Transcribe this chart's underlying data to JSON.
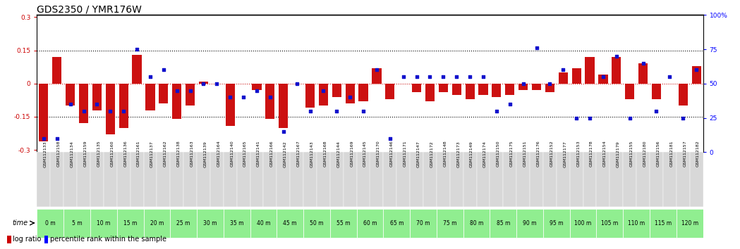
{
  "title": "GDS2350 / YMR176W",
  "samples": [
    "GSM112133",
    "GSM112158",
    "GSM112134",
    "GSM112159",
    "GSM112135",
    "GSM112160",
    "GSM112136",
    "GSM112161",
    "GSM112137",
    "GSM112162",
    "GSM112138",
    "GSM112163",
    "GSM112139",
    "GSM112164",
    "GSM112140",
    "GSM112165",
    "GSM112141",
    "GSM112166",
    "GSM112142",
    "GSM112167",
    "GSM112143",
    "GSM112168",
    "GSM112144",
    "GSM112169",
    "GSM112145",
    "GSM112170",
    "GSM112146",
    "GSM112171",
    "GSM112147",
    "GSM112172",
    "GSM112148",
    "GSM112173",
    "GSM112149",
    "GSM112174",
    "GSM112150",
    "GSM112175",
    "GSM112151",
    "GSM112176",
    "GSM112152",
    "GSM112177",
    "GSM112153",
    "GSM112178",
    "GSM112154",
    "GSM112179",
    "GSM112155",
    "GSM112180",
    "GSM112156",
    "GSM112181",
    "GSM112157",
    "GSM112182"
  ],
  "time_labels": [
    "0 m",
    "5 m",
    "10 m",
    "15 m",
    "20 m",
    "25 m",
    "30 m",
    "35 m",
    "40 m",
    "45 m",
    "50 m",
    "55 m",
    "60 m",
    "65 m",
    "70 m",
    "75 m",
    "80 m",
    "85 m",
    "90 m",
    "95 m",
    "100 m",
    "105 m",
    "110 m",
    "115 m",
    "120 m"
  ],
  "log_ratio": [
    -0.26,
    0.12,
    -0.1,
    -0.18,
    -0.12,
    -0.23,
    -0.2,
    0.13,
    -0.12,
    -0.09,
    -0.16,
    -0.1,
    0.01,
    0.0,
    -0.19,
    0.0,
    -0.03,
    -0.16,
    -0.2,
    0.0,
    -0.11,
    -0.1,
    -0.06,
    -0.09,
    -0.08,
    0.07,
    -0.07,
    0.0,
    -0.04,
    -0.08,
    -0.04,
    -0.05,
    -0.07,
    -0.05,
    -0.06,
    -0.05,
    -0.03,
    -0.03,
    -0.04,
    0.05,
    0.07,
    0.12,
    0.04,
    0.12,
    -0.07,
    0.09,
    -0.07,
    0.0,
    -0.1,
    0.08
  ],
  "percentile": [
    10,
    10,
    35,
    30,
    35,
    30,
    30,
    75,
    55,
    60,
    45,
    45,
    50,
    50,
    40,
    40,
    45,
    40,
    15,
    50,
    30,
    45,
    30,
    40,
    30,
    60,
    10,
    55,
    55,
    55,
    55,
    55,
    55,
    55,
    30,
    35,
    50,
    76,
    50,
    60,
    25,
    25,
    55,
    70,
    25,
    65,
    30,
    55,
    25,
    60
  ],
  "bar_color": "#cc1111",
  "dot_color": "#1111cc",
  "bg_color": "#ffffff",
  "plot_bg": "#ffffff",
  "axis_color": "#000000",
  "dotted_line_color": "#000000",
  "zero_line_color": "#cc1111",
  "ylim_left": [
    -0.31,
    0.31
  ],
  "ylim_right": [
    0,
    100
  ],
  "yticks_left": [
    -0.3,
    -0.15,
    0,
    0.15,
    0.3
  ],
  "yticks_right": [
    0,
    25,
    50,
    75,
    100
  ],
  "hlines": [
    -0.15,
    0.15
  ],
  "title_fontsize": 10,
  "tick_fontsize": 6.5,
  "legend_fontsize": 8,
  "time_row_color": "#90ee90",
  "sample_row_color": "#d3d3d3"
}
